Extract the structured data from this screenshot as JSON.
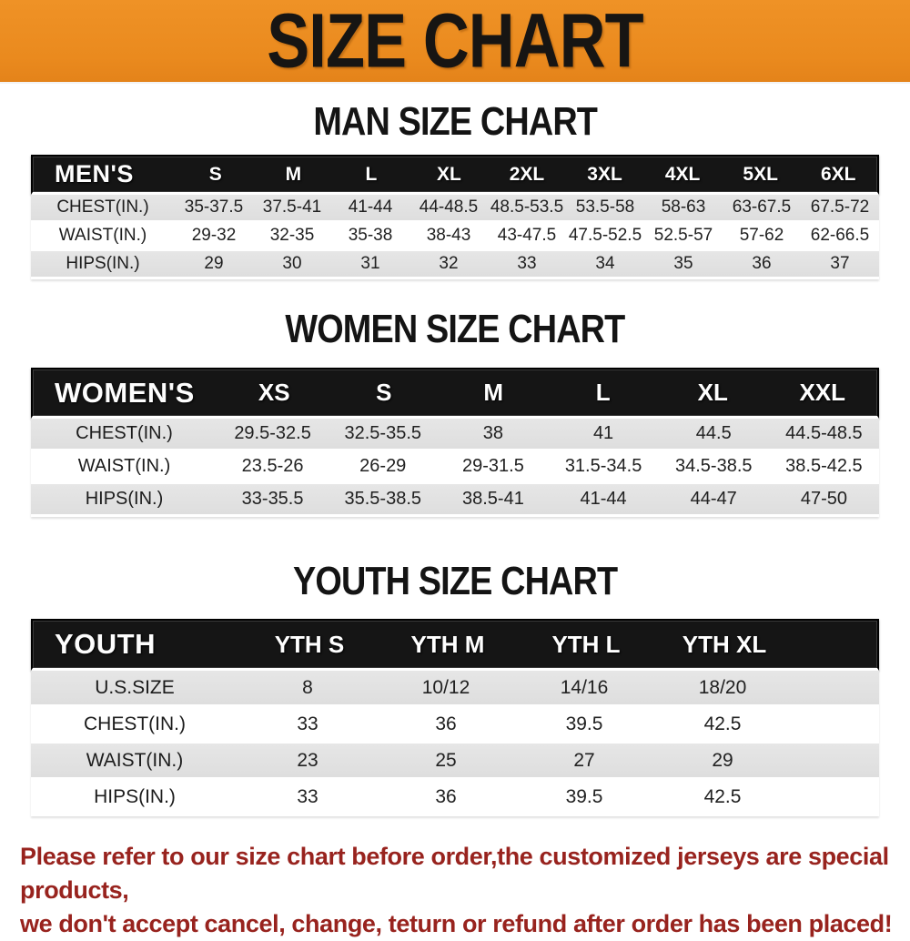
{
  "banner": {
    "title": "SIZE CHART",
    "bg_color": "#ea8a1e",
    "text_color": "#171513"
  },
  "colors": {
    "table_header_bg": "#151515",
    "table_header_text": "#ffffff",
    "stripe_row_bg": "#e1e1e1",
    "disclaimer_text": "#98231e"
  },
  "sections": [
    {
      "title": "MAN SIZE CHART",
      "header_label": "MEN'S",
      "sizes": [
        "S",
        "M",
        "L",
        "XL",
        "2XL",
        "3XL",
        "4XL",
        "5XL",
        "6XL"
      ],
      "rows": [
        {
          "label": "CHEST(IN.)",
          "values": [
            "35-37.5",
            "37.5-41",
            "41-44",
            "44-48.5",
            "48.5-53.5",
            "53.5-58",
            "58-63",
            "63-67.5",
            "67.5-72"
          ]
        },
        {
          "label": "WAIST(IN.)",
          "values": [
            "29-32",
            "32-35",
            "35-38",
            "38-43",
            "43-47.5",
            "47.5-52.5",
            "52.5-57",
            "57-62",
            "62-66.5"
          ]
        },
        {
          "label": "HIPS(IN.)",
          "values": [
            "29",
            "30",
            "31",
            "32",
            "33",
            "34",
            "35",
            "36",
            "37"
          ]
        }
      ]
    },
    {
      "title": "WOMEN SIZE CHART",
      "header_label": "WOMEN'S",
      "sizes": [
        "XS",
        "S",
        "M",
        "L",
        "XL",
        "XXL"
      ],
      "rows": [
        {
          "label": "CHEST(IN.)",
          "values": [
            "29.5-32.5",
            "32.5-35.5",
            "38",
            "41",
            "44.5",
            "44.5-48.5"
          ]
        },
        {
          "label": "WAIST(IN.)",
          "values": [
            "23.5-26",
            "26-29",
            "29-31.5",
            "31.5-34.5",
            "34.5-38.5",
            "38.5-42.5"
          ]
        },
        {
          "label": "HIPS(IN.)",
          "values": [
            "33-35.5",
            "35.5-38.5",
            "38.5-41",
            "41-44",
            "44-47",
            "47-50"
          ]
        }
      ]
    },
    {
      "title": "YOUTH SIZE CHART",
      "header_label": "YOUTH",
      "sizes": [
        "YTH S",
        "YTH M",
        "YTH L",
        "YTH XL"
      ],
      "rows": [
        {
          "label": "U.S.SIZE",
          "values": [
            "8",
            "10/12",
            "14/16",
            "18/20"
          ]
        },
        {
          "label": "CHEST(IN.)",
          "values": [
            "33",
            "36",
            "39.5",
            "42.5"
          ]
        },
        {
          "label": "WAIST(IN.)",
          "values": [
            "23",
            "25",
            "27",
            "29"
          ]
        },
        {
          "label": "HIPS(IN.)",
          "values": [
            "33",
            "36",
            "39.5",
            "42.5"
          ]
        }
      ]
    }
  ],
  "disclaimer": {
    "line1": "Please refer to our size chart before order,the customized jerseys are special products,",
    "line2": "we don't accept cancel, change, teturn or refund after order has been placed!"
  }
}
